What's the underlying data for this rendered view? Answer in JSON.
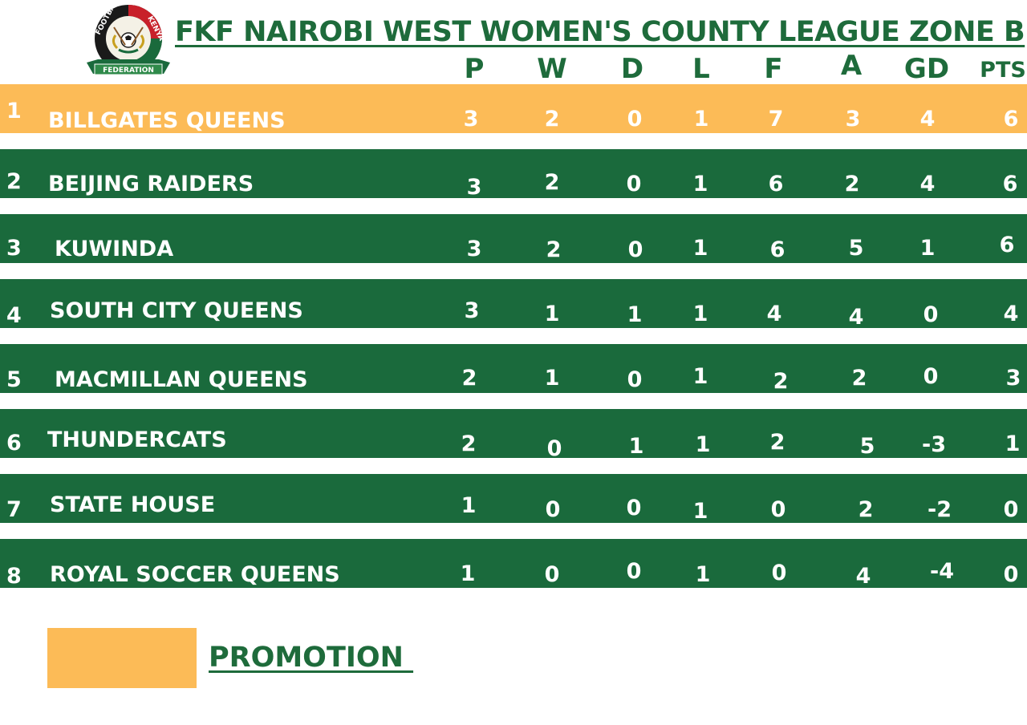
{
  "title": "FKF NAIROBI WEST WOMEN'S COUNTY LEAGUE ZONE B",
  "logo": {
    "icon": "fkf-logo",
    "text_top_left": "FOOTBALL",
    "text_top_right": "KENYA",
    "text_banner": "FEDERATION"
  },
  "columns": [
    "P",
    "W",
    "D",
    "L",
    "F",
    "A",
    "GD",
    "PTS"
  ],
  "rows": [
    {
      "pos": "1",
      "team": "BILLGATES QUEENS",
      "p": "3",
      "w": "2",
      "d": "0",
      "l": "1",
      "f": "7",
      "a": "3",
      "gd": "4",
      "pts": "6"
    },
    {
      "pos": "2",
      "team": "BEIJING RAIDERS",
      "p": "3",
      "w": "2",
      "d": "0",
      "l": "1",
      "f": "6",
      "a": "2",
      "gd": "4",
      "pts": "6"
    },
    {
      "pos": "3",
      "team": "KUWINDA",
      "p": "3",
      "w": "2",
      "d": "0",
      "l": "1",
      "f": "6",
      "a": "5",
      "gd": "1",
      "pts": "6"
    },
    {
      "pos": "4",
      "team": "SOUTH CITY QUEENS",
      "p": "3",
      "w": "1",
      "d": "1",
      "l": "1",
      "f": "4",
      "a": "4",
      "gd": "0",
      "pts": "4"
    },
    {
      "pos": "5",
      "team": "MACMILLAN QUEENS",
      "p": "2",
      "w": "1",
      "d": "0",
      "l": "1",
      "f": "2",
      "a": "2",
      "gd": "0",
      "pts": "3"
    },
    {
      "pos": "6",
      "team": "THUNDERCATS",
      "p": "2",
      "w": "0",
      "d": "1",
      "l": "1",
      "f": "2",
      "a": "5",
      "gd": "-3",
      "pts": "1"
    },
    {
      "pos": "7",
      "team": "STATE HOUSE",
      "p": "1",
      "w": "0",
      "d": "0",
      "l": "1",
      "f": "0",
      "a": "2",
      "gd": "-2",
      "pts": "0"
    },
    {
      "pos": "8",
      "team": "ROYAL SOCCER QUEENS",
      "p": "1",
      "w": "0",
      "d": "0",
      "l": "1",
      "f": "0",
      "a": "4",
      "gd": "-4",
      "pts": "0"
    }
  ],
  "legend": {
    "label": "PROMOTION "
  },
  "colors": {
    "promotion": "#fcbb57",
    "row_green": "#1a6a3c",
    "title_green": "#1e6b3b"
  }
}
